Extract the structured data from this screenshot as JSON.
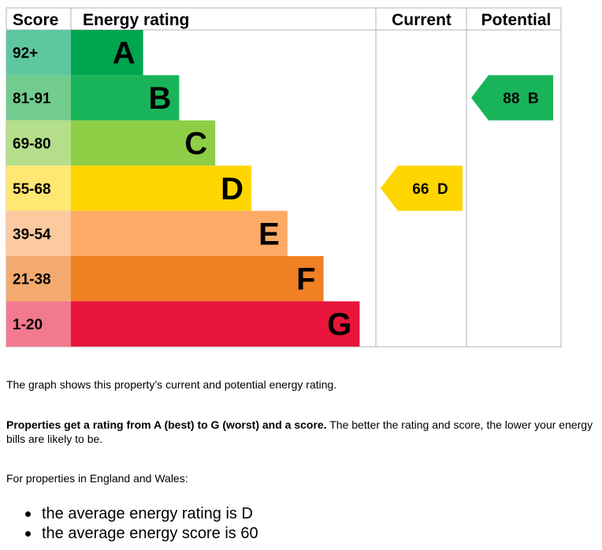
{
  "chart_data": {
    "type": "table",
    "headers": {
      "score": "Score",
      "rating": "Energy rating",
      "current": "Current",
      "potential": "Potential"
    },
    "bands": [
      {
        "letter": "A",
        "range": "92+",
        "color": "#00a550",
        "light": "#5ec7a0"
      },
      {
        "letter": "B",
        "range": "81-91",
        "color": "#19b459",
        "light": "#71cc8e"
      },
      {
        "letter": "C",
        "range": "69-80",
        "color": "#8dce46",
        "light": "#b5de8a"
      },
      {
        "letter": "D",
        "range": "55-68",
        "color": "#ffd500",
        "light": "#ffe772"
      },
      {
        "letter": "E",
        "range": "39-54",
        "color": "#fcaa65",
        "light": "#fdc99e"
      },
      {
        "letter": "F",
        "range": "21-38",
        "color": "#ef8023",
        "light": "#f4aa6e"
      },
      {
        "letter": "G",
        "range": "1-20",
        "color": "#e9153b",
        "light": "#f27a8f"
      }
    ],
    "current": {
      "value": 66,
      "letter": "D",
      "label": "66  D",
      "color": "#ffd500"
    },
    "potential": {
      "value": 88,
      "letter": "B",
      "label": "88  B",
      "color": "#19b459"
    }
  },
  "text": {
    "p1": "The graph shows this property’s current and potential energy rating.",
    "p2_bold": "Properties get a rating from A (best) to G (worst) and a score.",
    "p2_rest": " The better the rating and score, the lower your energy bills are likely to be.",
    "p3": "For properties in England and Wales:",
    "bullets": [
      "the average energy rating is D",
      "the average energy score is 60"
    ]
  }
}
